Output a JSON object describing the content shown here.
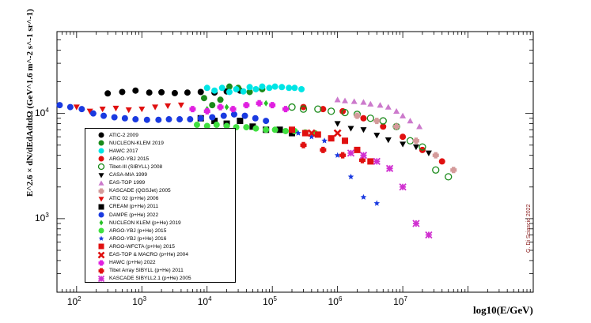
{
  "chart_data": {
    "type": "scatter",
    "title": "",
    "xlabel": "log10(E/GeV)",
    "ylabel": "E^2.6 × dN/dEdAdtdΩ (GeV^1.6 m^-2 s^-1 sr^-1)",
    "x_scale": "log",
    "y_scale": "log",
    "xlim": [
      50,
      1000000000
    ],
    "ylim": [
      200,
      60000
    ],
    "x_tick_labels": [
      "10^2",
      "10^3",
      "10^4",
      "10^5",
      "10^6",
      "10^7"
    ],
    "y_tick_labels": [
      "10^3",
      "10^4"
    ],
    "credit": "G. Di Sciascio 2022",
    "series": [
      {
        "name": "ATIC-2 2009",
        "marker": "circle",
        "color": "#000000",
        "x": [
          300,
          500,
          800,
          1300,
          2000,
          3200,
          5000,
          8000,
          13000,
          20000,
          32000
        ],
        "y": [
          15500,
          16000,
          16500,
          15800,
          15900,
          15600,
          15800,
          16000,
          15800,
          16200,
          16500
        ]
      },
      {
        "name": "NUCLEON-KLEM 2019",
        "marker": "circle",
        "color": "#1a8a1a",
        "x": [
          9000,
          12000,
          16000,
          22000,
          30000,
          45000,
          70000
        ],
        "y": [
          14000,
          12000,
          13500,
          18000,
          17500,
          16000,
          17000
        ]
      },
      {
        "name": "HAWC 2017",
        "marker": "circle",
        "color": "#00e5e5",
        "x": [
          10000,
          13000,
          17000,
          22000,
          28000,
          36000,
          45000,
          56000,
          70000,
          90000,
          110000,
          140000,
          180000,
          220000,
          280000
        ],
        "y": [
          17500,
          16500,
          17500,
          16000,
          17000,
          16200,
          17800,
          17000,
          18000,
          17500,
          18000,
          17800,
          17500,
          17500,
          17000
        ]
      },
      {
        "name": "ARGO-YBJ 2015",
        "marker": "circle",
        "color": "#e01010",
        "x": [
          300000,
          600000,
          1200000,
          2500000,
          5000000,
          10000000,
          20000000,
          40000000
        ],
        "y": [
          11500,
          11000,
          10500,
          9000,
          7500,
          6000,
          4500,
          3500
        ]
      },
      {
        "name": "Tibet-III (SIBYLL) 2008",
        "marker": "circle-open",
        "color": "#1a8a1a",
        "x": [
          200000,
          300000,
          500000,
          800000,
          1300000,
          2000000,
          3200000,
          5000000,
          8000000,
          13000000,
          20000000,
          32000000,
          50000000
        ],
        "y": [
          11500,
          11000,
          11000,
          10500,
          10200,
          9800,
          9000,
          8500,
          7500,
          5500,
          4800,
          2900,
          2500
        ]
      },
      {
        "name": "CASA-MIA 1999",
        "marker": "triangle-down",
        "color": "#000000",
        "x": [
          1000000,
          1600000,
          2500000,
          4000000,
          6000000,
          10000000,
          16000000,
          25000000
        ],
        "y": [
          8000,
          7200,
          7000,
          6200,
          5600,
          5100,
          4800,
          4200
        ]
      },
      {
        "name": "EAS-TOP 1999",
        "marker": "triangle-up",
        "color": "#cc7acc",
        "x": [
          1000000,
          1300000,
          1800000,
          2500000,
          3200000,
          4500000,
          6000000,
          8000000,
          10000000,
          13000000,
          18000000
        ],
        "y": [
          13500,
          13200,
          13000,
          12800,
          12300,
          12000,
          11500,
          10500,
          9500,
          8500,
          7500
        ]
      },
      {
        "name": "KASCADE (QGSJet) 2005",
        "marker": "cross",
        "color": "#d49a9a",
        "x": [
          2000000,
          4000000,
          8000000,
          16000000,
          32000000,
          60000000
        ],
        "y": [
          9500,
          8500,
          7500,
          5500,
          4000,
          2900
        ]
      },
      {
        "name": "ATIC 02 (p+He) 2006",
        "marker": "triangle-down",
        "color": "#e01010",
        "x": [
          100,
          160,
          250,
          400,
          630,
          1000,
          1600,
          2500,
          4000
        ],
        "y": [
          11500,
          10500,
          11000,
          11200,
          10800,
          11000,
          11500,
          11800,
          12000
        ]
      },
      {
        "name": "CREAM (p+He) 2011",
        "marker": "square",
        "color": "#000000",
        "x": [
          8000,
          13000,
          20000,
          32000,
          50000,
          80000,
          130000,
          200000
        ],
        "y": [
          9000,
          8500,
          8000,
          8500,
          7500,
          7000,
          7000,
          6500
        ]
      },
      {
        "name": "DAMPE (p+He) 2022",
        "marker": "circle",
        "color": "#1a3ae0",
        "x": [
          55,
          80,
          120,
          180,
          260,
          380,
          550,
          800,
          1200,
          1800,
          2600,
          3800,
          5500,
          8000,
          12000,
          18000,
          26000,
          38000,
          55000,
          80000
        ],
        "y": [
          12000,
          11500,
          11000,
          10000,
          9500,
          9200,
          9000,
          8800,
          8700,
          8700,
          8800,
          8800,
          8800,
          9000,
          9200,
          9500,
          9800,
          9500,
          9000,
          8500
        ]
      },
      {
        "name": "NUCLEON KLEM (p+He) 2019",
        "marker": "diamond",
        "color": "#28c028",
        "x": [
          10000,
          20000,
          40000,
          80000
        ],
        "y": [
          11000,
          11500,
          12000,
          12500
        ]
      },
      {
        "name": "ARGO-YBJ (p+He) 2015",
        "marker": "circle",
        "color": "#40e040",
        "x": [
          7000,
          10000,
          14000,
          20000,
          28000,
          40000,
          56000,
          80000,
          110000,
          160000,
          220000,
          320000,
          450000
        ],
        "y": [
          7800,
          7600,
          7800,
          7600,
          7400,
          7400,
          7200,
          7000,
          7000,
          6800,
          6800,
          6600,
          6500
        ]
      },
      {
        "name": "ARGO-YBJ (p+He) 2016",
        "marker": "star",
        "color": "#1a3ae0",
        "x": [
          250000,
          400000,
          630000,
          1000000,
          1600000,
          2500000,
          4000000
        ],
        "y": [
          6500,
          6000,
          5500,
          4000,
          2500,
          1600,
          1400
        ]
      },
      {
        "name": "ARGO-WFCTA (p+He) 2015",
        "marker": "square",
        "color": "#e01010",
        "x": [
          200000,
          320000,
          500000,
          800000,
          1300000,
          2000000,
          3200000
        ],
        "y": [
          7000,
          6500,
          6300,
          5800,
          5500,
          4500,
          3500
        ]
      },
      {
        "name": "EAS-TOP & MACRO (p+He) 2004",
        "marker": "x",
        "color": "#e01010",
        "x": [
          400000,
          1000000
        ],
        "y": [
          6500,
          6500
        ]
      },
      {
        "name": "HAWC (p+He) 2022",
        "marker": "cross",
        "color": "#e020e0",
        "x": [
          6000,
          10000,
          16000,
          25000,
          40000,
          63000,
          100000,
          160000
        ],
        "y": [
          11000,
          10500,
          11500,
          11000,
          12000,
          12500,
          12000,
          11000
        ]
      },
      {
        "name": "Tibet Array SIBYLL (p+He) 2011",
        "marker": "cross",
        "color": "#e01010",
        "x": [
          300000,
          600000,
          1200000,
          2400000
        ],
        "y": [
          5000,
          4500,
          4000,
          3600
        ]
      },
      {
        "name": "KASCADE SIBYLL2.1 (p+He) 2005",
        "marker": "cross-x",
        "color": "#d030d0",
        "x": [
          1600000,
          2500000,
          4000000,
          6300000,
          10000000,
          16000000,
          25000000
        ],
        "y": [
          4200,
          4000,
          3500,
          3000,
          2000,
          900,
          700
        ]
      }
    ]
  }
}
